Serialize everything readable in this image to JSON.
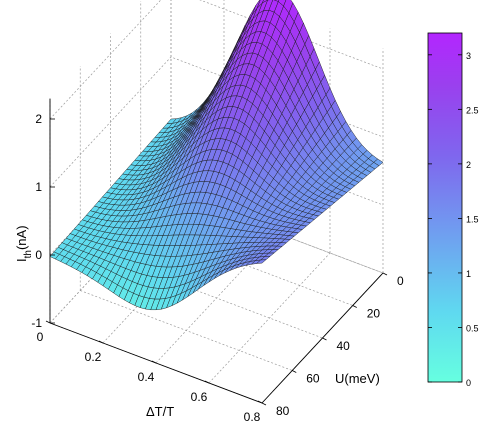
{
  "chart_data": {
    "type": "surface",
    "xlabel": "ΔT/T",
    "ylabel": "U(meV)",
    "zlabel_main": "I",
    "zlabel_sub": "th",
    "zlabel_unit": "(nA)",
    "x_ticks": [
      "0",
      "0.2",
      "0.4",
      "0.6",
      "0.8"
    ],
    "y_ticks": [
      "0",
      "20",
      "40",
      "60",
      "80"
    ],
    "z_ticks": [
      "-1",
      "0",
      "1",
      "2"
    ],
    "x_range": [
      0,
      0.8
    ],
    "y_range": [
      0,
      80
    ],
    "z_range": [
      -1,
      2
    ],
    "grid": true,
    "colormap": [
      "#66ffe0",
      "#5fd9f0",
      "#6fa0f0",
      "#7f66ee",
      "#9a40ee",
      "#b326ff"
    ],
    "colorbar": {
      "ticks": [
        "0",
        "0.5",
        "1",
        "1.5",
        "2",
        "2.5",
        "3"
      ],
      "range": [
        0,
        3.2
      ]
    },
    "surface_samples": [
      {
        "x": 0.0,
        "y": 0,
        "z": 0.0
      },
      {
        "x": 0.4,
        "y": 0,
        "z": 2.3
      },
      {
        "x": 0.8,
        "y": 0,
        "z": 0.9
      },
      {
        "x": 0.0,
        "y": 80,
        "z": 0.0
      },
      {
        "x": 0.4,
        "y": 80,
        "z": -0.5
      },
      {
        "x": 0.8,
        "y": 80,
        "z": 1.0
      }
    ]
  }
}
